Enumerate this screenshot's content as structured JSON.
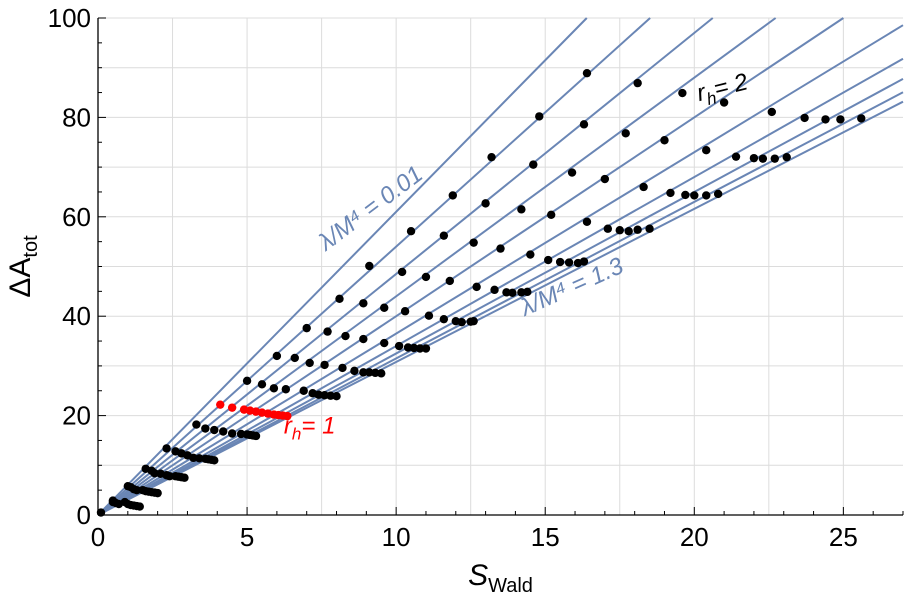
{
  "chart_data": {
    "type": "line",
    "xlabel": "S",
    "xlabel_sub": "Wald",
    "ylabel": "ΔA",
    "ylabel_sub": "tot",
    "xlim": [
      0,
      27
    ],
    "ylim": [
      0,
      100
    ],
    "xticks": [
      0,
      5,
      10,
      15,
      20,
      25
    ],
    "yticks": [
      0,
      20,
      40,
      60,
      80,
      100
    ],
    "grid": true,
    "colors": {
      "line": "#6a86b5",
      "point": "#000000",
      "highlight": "#ff0000",
      "grid": "#dcdcdc"
    },
    "slopes": [
      6.1,
      5.4,
      4.85,
      4.4,
      4.0,
      3.65,
      3.4,
      3.25,
      3.15,
      3.08
    ],
    "series": [
      {
        "points": [
          [
            0.1,
            0.5
          ],
          [
            0.5,
            2.9
          ],
          [
            1.0,
            5.8
          ],
          [
            1.6,
            9.3
          ],
          [
            2.3,
            13.4
          ],
          [
            3.3,
            18.2
          ],
          [
            5.0,
            27.0
          ],
          [
            6.0,
            32.0
          ],
          [
            7.0,
            37.6
          ],
          [
            8.1,
            43.5
          ],
          [
            9.1,
            50.1
          ],
          [
            10.5,
            57.1
          ],
          [
            11.9,
            64.3
          ],
          [
            13.2,
            72.0
          ],
          [
            14.8,
            80.2
          ],
          [
            16.4,
            88.9
          ]
        ]
      },
      {
        "points": [
          [
            0.5,
            2.6
          ],
          [
            1.1,
            5.6
          ],
          [
            1.8,
            8.9
          ],
          [
            2.6,
            12.8
          ],
          [
            3.6,
            17.4
          ],
          [
            5.5,
            26.3
          ],
          [
            6.6,
            31.6
          ],
          [
            7.7,
            36.9
          ],
          [
            8.9,
            42.6
          ],
          [
            10.2,
            48.9
          ],
          [
            11.6,
            56.2
          ],
          [
            13.0,
            62.7
          ],
          [
            14.6,
            70.5
          ],
          [
            16.3,
            78.6
          ],
          [
            18.1,
            86.9
          ]
        ]
      },
      {
        "points": [
          [
            0.6,
            2.4
          ],
          [
            1.2,
            5.2
          ],
          [
            1.9,
            8.4
          ],
          [
            2.8,
            12.4
          ],
          [
            3.9,
            17.1
          ],
          [
            5.9,
            25.5
          ],
          [
            7.1,
            30.6
          ],
          [
            8.3,
            36.0
          ],
          [
            9.6,
            41.7
          ],
          [
            11.0,
            47.9
          ],
          [
            12.6,
            54.8
          ],
          [
            14.2,
            61.5
          ],
          [
            15.9,
            68.9
          ],
          [
            17.7,
            76.8
          ],
          [
            19.6,
            84.9
          ]
        ]
      },
      {
        "points": [
          [
            0.7,
            2.2
          ],
          [
            1.3,
            5.0
          ],
          [
            2.1,
            8.3
          ],
          [
            3.0,
            12.0
          ],
          [
            4.2,
            16.8
          ],
          [
            6.3,
            25.3
          ],
          [
            7.6,
            30.2
          ],
          [
            8.9,
            35.4
          ],
          [
            10.3,
            41.0
          ],
          [
            11.8,
            47.1
          ],
          [
            13.5,
            53.6
          ],
          [
            15.2,
            60.4
          ],
          [
            17.0,
            67.6
          ],
          [
            19.0,
            75.4
          ],
          [
            21.0,
            83.0
          ]
        ]
      },
      {
        "points": [
          [
            0.9,
            2.6
          ],
          [
            1.5,
            5.0
          ],
          [
            2.3,
            8.0
          ],
          [
            3.2,
            11.5
          ],
          [
            4.5,
            16.4
          ],
          [
            6.9,
            25.0
          ],
          [
            8.2,
            29.6
          ],
          [
            9.6,
            34.6
          ],
          [
            11.1,
            40.1
          ],
          [
            12.7,
            45.9
          ],
          [
            14.5,
            52.4
          ],
          [
            16.4,
            59.0
          ],
          [
            18.3,
            66.0
          ],
          [
            20.4,
            73.4
          ],
          [
            22.6,
            81.1
          ]
        ]
      },
      {
        "points": [
          [
            1.0,
            2.2
          ],
          [
            1.6,
            4.8
          ],
          [
            2.4,
            7.8
          ],
          [
            3.4,
            11.4
          ],
          [
            4.8,
            16.3
          ],
          [
            7.2,
            24.5
          ],
          [
            8.6,
            29.0
          ],
          [
            10.1,
            34.0
          ],
          [
            11.6,
            39.4
          ],
          [
            13.3,
            45.3
          ],
          [
            15.1,
            51.3
          ],
          [
            17.1,
            57.6
          ],
          [
            19.2,
            64.8
          ],
          [
            21.4,
            72.1
          ],
          [
            23.7,
            79.9
          ]
        ]
      },
      {
        "points": [
          [
            1.1,
            2.0
          ],
          [
            1.7,
            4.7
          ],
          [
            2.6,
            7.8
          ],
          [
            3.6,
            11.3
          ],
          [
            5.0,
            16.2
          ],
          [
            7.4,
            24.2
          ],
          [
            8.9,
            28.7
          ],
          [
            10.4,
            33.7
          ],
          [
            12.0,
            39.0
          ],
          [
            13.7,
            44.8
          ],
          [
            15.5,
            50.9
          ],
          [
            17.5,
            57.3
          ],
          [
            19.7,
            64.4
          ],
          [
            22.0,
            71.8
          ],
          [
            24.4,
            79.6
          ]
        ]
      },
      {
        "points": [
          [
            1.2,
            1.9
          ],
          [
            1.8,
            4.6
          ],
          [
            2.7,
            7.7
          ],
          [
            3.7,
            11.2
          ],
          [
            5.1,
            16.1
          ],
          [
            7.6,
            24.1
          ],
          [
            9.1,
            28.7
          ],
          [
            10.6,
            33.6
          ],
          [
            12.2,
            38.8
          ],
          [
            13.9,
            44.7
          ],
          [
            15.8,
            50.8
          ],
          [
            17.8,
            57.1
          ],
          [
            20.0,
            64.3
          ],
          [
            22.3,
            71.7
          ],
          [
            24.9,
            79.6
          ]
        ]
      },
      {
        "points": [
          [
            1.3,
            1.8
          ],
          [
            1.9,
            4.5
          ],
          [
            2.8,
            7.6
          ],
          [
            3.8,
            11.1
          ],
          [
            5.2,
            16.0
          ],
          [
            7.8,
            24.0
          ],
          [
            9.3,
            28.6
          ],
          [
            10.8,
            33.5
          ],
          [
            12.5,
            38.9
          ],
          [
            14.2,
            44.8
          ],
          [
            16.1,
            50.7
          ],
          [
            18.1,
            57.4
          ],
          [
            20.4,
            64.3
          ],
          [
            22.7,
            71.7
          ],
          [
            25.6,
            79.8
          ]
        ]
      },
      {
        "points": [
          [
            1.4,
            1.7
          ],
          [
            2.0,
            4.4
          ],
          [
            2.9,
            7.5
          ],
          [
            3.9,
            11.0
          ],
          [
            5.3,
            15.9
          ],
          [
            8.0,
            23.9
          ],
          [
            9.5,
            28.5
          ],
          [
            11.0,
            33.5
          ],
          [
            12.6,
            39.0
          ],
          [
            14.4,
            44.9
          ],
          [
            16.3,
            51.0
          ],
          [
            18.5,
            57.6
          ],
          [
            20.8,
            64.6
          ],
          [
            23.1,
            72.0
          ]
        ]
      }
    ],
    "red_points": [
      [
        4.1,
        22.2
      ],
      [
        4.5,
        21.6
      ],
      [
        4.9,
        21.2
      ],
      [
        5.1,
        21.0
      ],
      [
        5.3,
        20.8
      ],
      [
        5.5,
        20.6
      ],
      [
        5.7,
        20.4
      ],
      [
        5.9,
        20.2
      ],
      [
        6.05,
        20.1
      ],
      [
        6.2,
        20.0
      ],
      [
        6.35,
        19.9
      ]
    ],
    "annotations": [
      {
        "text": "λ/M⁴ = 0.01",
        "color": "#6a86b5",
        "x": 9.3,
        "y": 60.5,
        "angle": -37
      },
      {
        "text": "λ/M⁴ = 1.3",
        "color": "#6a86b5",
        "x": 16.0,
        "y": 44.5,
        "angle": -24
      },
      {
        "text_main": "r",
        "text_sub": "h",
        "text_tail": "= 2",
        "color": "#000000",
        "x": 21.0,
        "y": 84.5,
        "angle": -14
      },
      {
        "text_main": "r",
        "text_sub": "h",
        "text_tail": "= 1",
        "color": "#ff0000",
        "x": 7.1,
        "y": 16.4,
        "angle": 0
      }
    ]
  }
}
